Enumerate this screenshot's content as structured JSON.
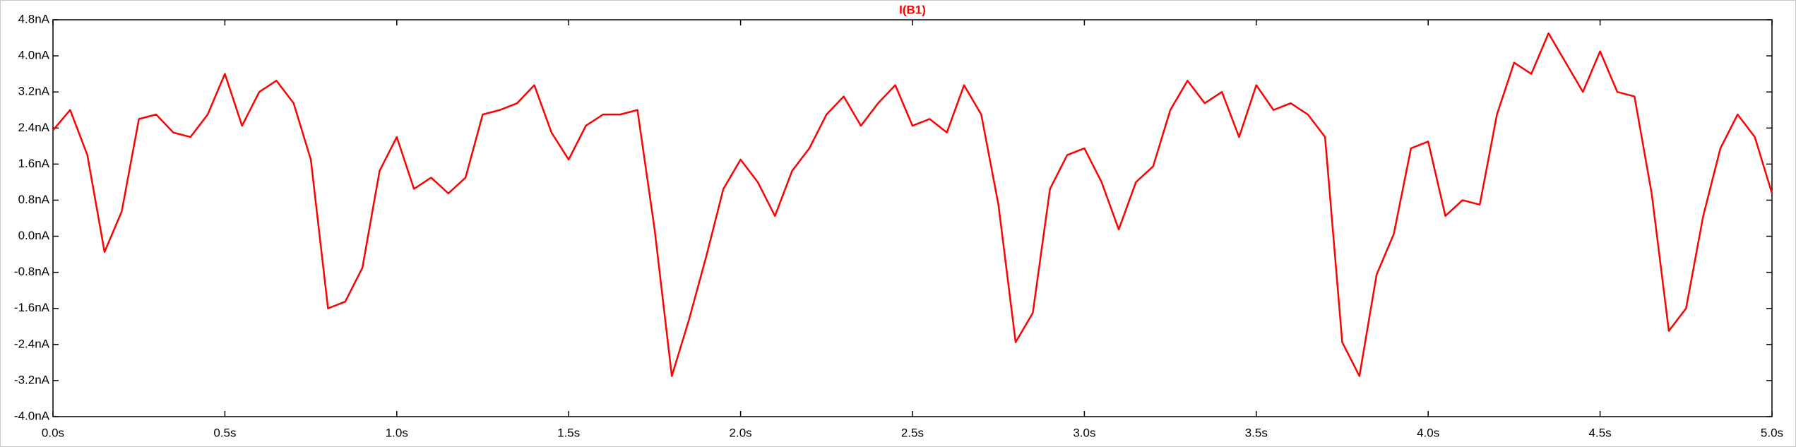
{
  "chart_data": {
    "type": "line",
    "title": "I(B1)",
    "x": [
      0,
      0.05,
      0.1,
      0.15,
      0.2,
      0.25,
      0.3,
      0.35,
      0.4,
      0.45,
      0.5,
      0.55,
      0.6,
      0.65,
      0.7,
      0.75,
      0.8,
      0.85,
      0.9,
      0.95,
      1,
      1.05,
      1.1,
      1.15,
      1.2,
      1.25,
      1.3,
      1.35,
      1.4,
      1.45,
      1.5,
      1.55,
      1.6,
      1.65,
      1.7,
      1.75,
      1.8,
      1.85,
      1.9,
      1.95,
      2,
      2.05,
      2.1,
      2.15,
      2.2,
      2.25,
      2.3,
      2.35,
      2.4,
      2.45,
      2.5,
      2.55,
      2.6,
      2.65,
      2.7,
      2.75,
      2.8,
      2.85,
      2.9,
      2.95,
      3,
      3.05,
      3.1,
      3.15,
      3.2,
      3.25,
      3.3,
      3.35,
      3.4,
      3.45,
      3.5,
      3.55,
      3.6,
      3.65,
      3.7,
      3.75,
      3.8,
      3.85,
      3.9,
      3.95,
      4,
      4.05,
      4.1,
      4.15,
      4.2,
      4.25,
      4.3,
      4.35,
      4.4,
      4.45,
      4.5,
      4.55,
      4.6,
      4.65,
      4.7,
      4.75,
      4.8,
      4.85,
      4.9,
      4.95,
      5
    ],
    "series": [
      {
        "name": "I(B1)",
        "color": "#ff0000",
        "values": [
          2.35,
          2.8,
          1.8,
          -0.35,
          0.55,
          2.6,
          2.7,
          2.3,
          2.2,
          2.7,
          3.6,
          2.45,
          3.2,
          3.45,
          2.95,
          1.7,
          -1.6,
          -1.45,
          -0.7,
          1.45,
          2.2,
          1.05,
          1.3,
          0.95,
          1.3,
          2.7,
          2.8,
          2.95,
          3.35,
          2.3,
          1.7,
          2.45,
          2.7,
          2.7,
          2.8,
          0.15,
          -3.1,
          -1.85,
          -0.45,
          1.05,
          1.7,
          1.2,
          0.45,
          1.45,
          1.95,
          2.7,
          3.1,
          2.45,
          2.95,
          3.35,
          2.45,
          2.6,
          2.3,
          3.35,
          2.7,
          0.7,
          -2.35,
          -1.7,
          1.05,
          1.8,
          1.95,
          1.2,
          0.15,
          1.2,
          1.55,
          2.8,
          3.45,
          2.95,
          3.2,
          2.2,
          3.35,
          2.8,
          2.95,
          2.7,
          2.2,
          -2.35,
          -3.1,
          -0.85,
          0.05,
          1.95,
          2.1,
          0.45,
          0.8,
          0.7,
          2.7,
          3.85,
          3.6,
          4.5,
          3.85,
          3.2,
          4.1,
          3.2,
          3.1,
          0.95,
          -2.1,
          -1.6,
          0.45,
          1.95,
          2.7,
          2.2,
          0.95
        ]
      }
    ],
    "xlim": [
      0,
      5
    ],
    "xticks": [
      {
        "value": 0,
        "label": "0.0s"
      },
      {
        "value": 0.5,
        "label": "0.5s"
      },
      {
        "value": 1,
        "label": "1.0s"
      },
      {
        "value": 1.5,
        "label": "1.5s"
      },
      {
        "value": 2,
        "label": "2.0s"
      },
      {
        "value": 2.5,
        "label": "2.5s"
      },
      {
        "value": 3,
        "label": "3.0s"
      },
      {
        "value": 3.5,
        "label": "3.5s"
      },
      {
        "value": 4,
        "label": "4.0s"
      },
      {
        "value": 4.5,
        "label": "4.5s"
      },
      {
        "value": 5,
        "label": "5.0s"
      }
    ],
    "ylim": [
      -4,
      4.8
    ],
    "yticks": [
      {
        "value": -4,
        "label": "-4.0nA"
      },
      {
        "value": -3.2,
        "label": "-3.2nA"
      },
      {
        "value": -2.4,
        "label": "-2.4nA"
      },
      {
        "value": -1.6,
        "label": "-1.6nA"
      },
      {
        "value": -0.8,
        "label": "-0.8nA"
      },
      {
        "value": 0,
        "label": "0.0nA"
      },
      {
        "value": 0.8,
        "label": "0.8nA"
      },
      {
        "value": 1.6,
        "label": "1.6nA"
      },
      {
        "value": 2.4,
        "label": "2.4nA"
      },
      {
        "value": 3.2,
        "label": "3.2nA"
      },
      {
        "value": 4,
        "label": "4.0nA"
      },
      {
        "value": 4.8,
        "label": "4.8nA"
      }
    ]
  }
}
